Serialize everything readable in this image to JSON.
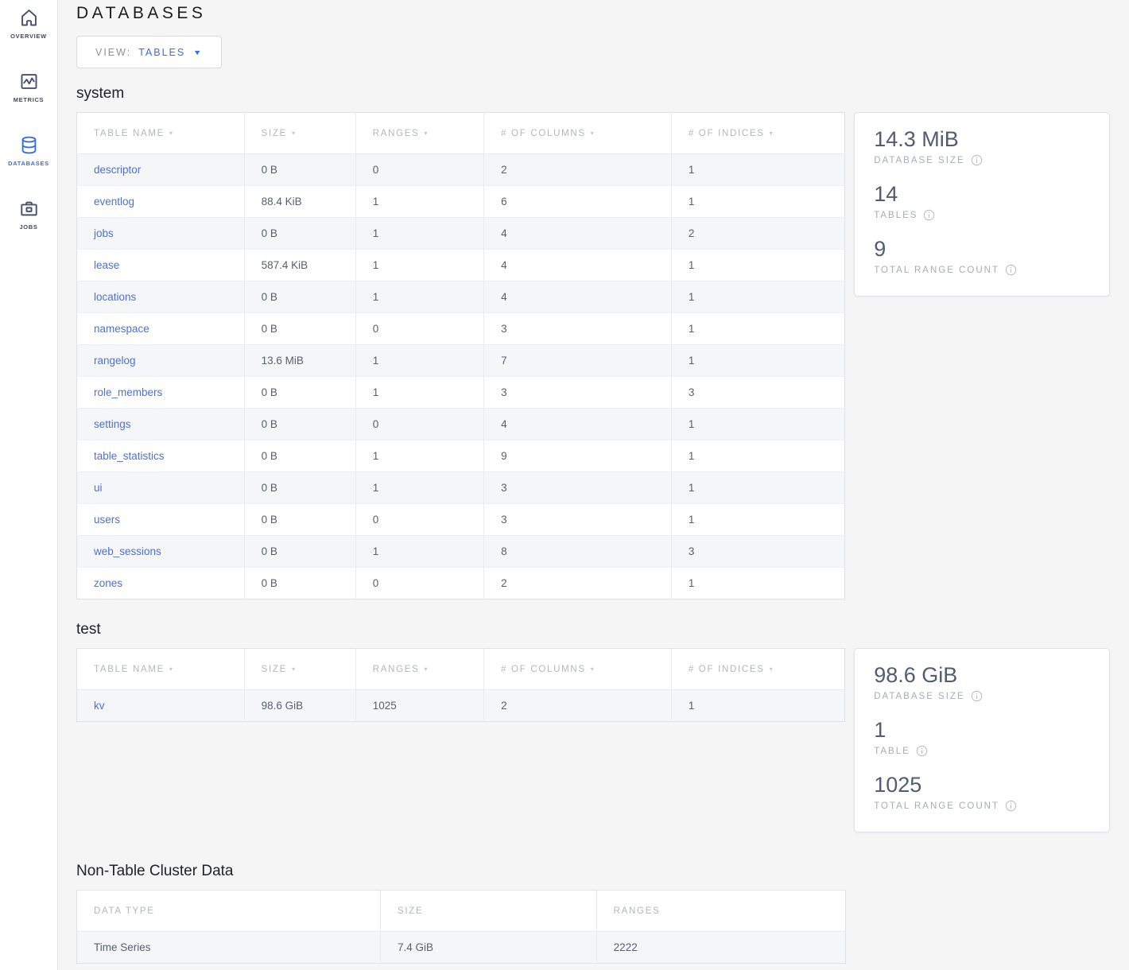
{
  "colors": {
    "accent_blue": "#3b6de2",
    "link_blue": "#4a6fe0"
  },
  "sidebar": {
    "items": [
      {
        "label": "OVERVIEW",
        "icon": "home-icon",
        "active": false
      },
      {
        "label": "METRICS",
        "icon": "metrics-icon",
        "active": false
      },
      {
        "label": "DATABASES",
        "icon": "databases-icon",
        "active": true
      },
      {
        "label": "JOBS",
        "icon": "jobs-icon",
        "active": false
      }
    ]
  },
  "header": {
    "title": "DATABASES",
    "view_label": "VIEW:",
    "view_value": "TABLES"
  },
  "sections": [
    {
      "name": "system",
      "sortable": true,
      "first_cell_link": true,
      "columns": [
        "TABLE NAME",
        "SIZE",
        "RANGES",
        "# OF COLUMNS",
        "# OF INDICES"
      ],
      "rows": [
        [
          "descriptor",
          "0 B",
          "0",
          "2",
          "1"
        ],
        [
          "eventlog",
          "88.4 KiB",
          "1",
          "6",
          "1"
        ],
        [
          "jobs",
          "0 B",
          "1",
          "4",
          "2"
        ],
        [
          "lease",
          "587.4 KiB",
          "1",
          "4",
          "1"
        ],
        [
          "locations",
          "0 B",
          "1",
          "4",
          "1"
        ],
        [
          "namespace",
          "0 B",
          "0",
          "3",
          "1"
        ],
        [
          "rangelog",
          "13.6 MiB",
          "1",
          "7",
          "1"
        ],
        [
          "role_members",
          "0 B",
          "1",
          "3",
          "3"
        ],
        [
          "settings",
          "0 B",
          "0",
          "4",
          "1"
        ],
        [
          "table_statistics",
          "0 B",
          "1",
          "9",
          "1"
        ],
        [
          "ui",
          "0 B",
          "1",
          "3",
          "1"
        ],
        [
          "users",
          "0 B",
          "0",
          "3",
          "1"
        ],
        [
          "web_sessions",
          "0 B",
          "1",
          "8",
          "3"
        ],
        [
          "zones",
          "0 B",
          "0",
          "2",
          "1"
        ]
      ],
      "summary": [
        {
          "value": "14.3 MiB",
          "label": "DATABASE SIZE",
          "icon": "info-icon"
        },
        {
          "value": "14",
          "label": "TABLES",
          "icon": "info-icon"
        },
        {
          "value": "9",
          "label": "TOTAL RANGE COUNT",
          "icon": "info-icon"
        }
      ]
    },
    {
      "name": "test",
      "sortable": true,
      "first_cell_link": true,
      "columns": [
        "TABLE NAME",
        "SIZE",
        "RANGES",
        "# OF COLUMNS",
        "# OF INDICES"
      ],
      "rows": [
        [
          "kv",
          "98.6 GiB",
          "1025",
          "2",
          "1"
        ]
      ],
      "summary": [
        {
          "value": "98.6 GiB",
          "label": "DATABASE SIZE",
          "icon": "info-icon"
        },
        {
          "value": "1",
          "label": "TABLE",
          "icon": "info-icon"
        },
        {
          "value": "1025",
          "label": "TOTAL RANGE COUNT",
          "icon": "info-icon"
        }
      ]
    },
    {
      "name": "Non-Table Cluster Data",
      "sortable": false,
      "first_cell_link": false,
      "columns": [
        "DATA TYPE",
        "SIZE",
        "RANGES"
      ],
      "rows": [
        [
          "Time Series",
          "7.4 GiB",
          "2222"
        ]
      ],
      "summary": null
    }
  ]
}
